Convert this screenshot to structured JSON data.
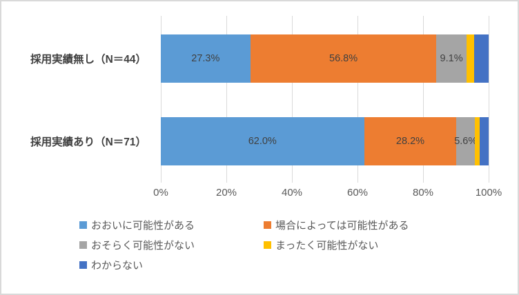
{
  "chart_data": {
    "type": "bar",
    "orientation": "horizontal-stacked",
    "categories": [
      "採用実績無し（N＝44）",
      "採用実績あり（N＝71）"
    ],
    "series": [
      {
        "name": "おおいに可能性がある",
        "color": "#5B9BD5",
        "values": [
          27.3,
          62.0
        ],
        "labels": [
          "27.3%",
          "62.0%"
        ]
      },
      {
        "name": "場合によっては可能性がある",
        "color": "#ED7D31",
        "values": [
          56.8,
          28.2
        ],
        "labels": [
          "56.8%",
          "28.2%"
        ]
      },
      {
        "name": "おそらく可能性がない",
        "color": "#A5A5A5",
        "values": [
          9.1,
          5.6
        ],
        "labels": [
          "9.1%",
          "5.6%"
        ]
      },
      {
        "name": "まったく可能性がない",
        "color": "#FFC000",
        "values": [
          2.3,
          1.4
        ],
        "labels": [
          "",
          ""
        ]
      },
      {
        "name": "わからない",
        "color": "#4472C4",
        "values": [
          4.5,
          2.8
        ],
        "labels": [
          "",
          ""
        ]
      }
    ],
    "x_ticks": [
      "0%",
      "20%",
      "40%",
      "60%",
      "80%",
      "100%"
    ],
    "xlim": [
      0,
      100
    ],
    "grid": true,
    "legend_position": "bottom",
    "grid_color": "#D9D9D9",
    "label_color": "#404040",
    "axis_text_color": "#595959"
  }
}
